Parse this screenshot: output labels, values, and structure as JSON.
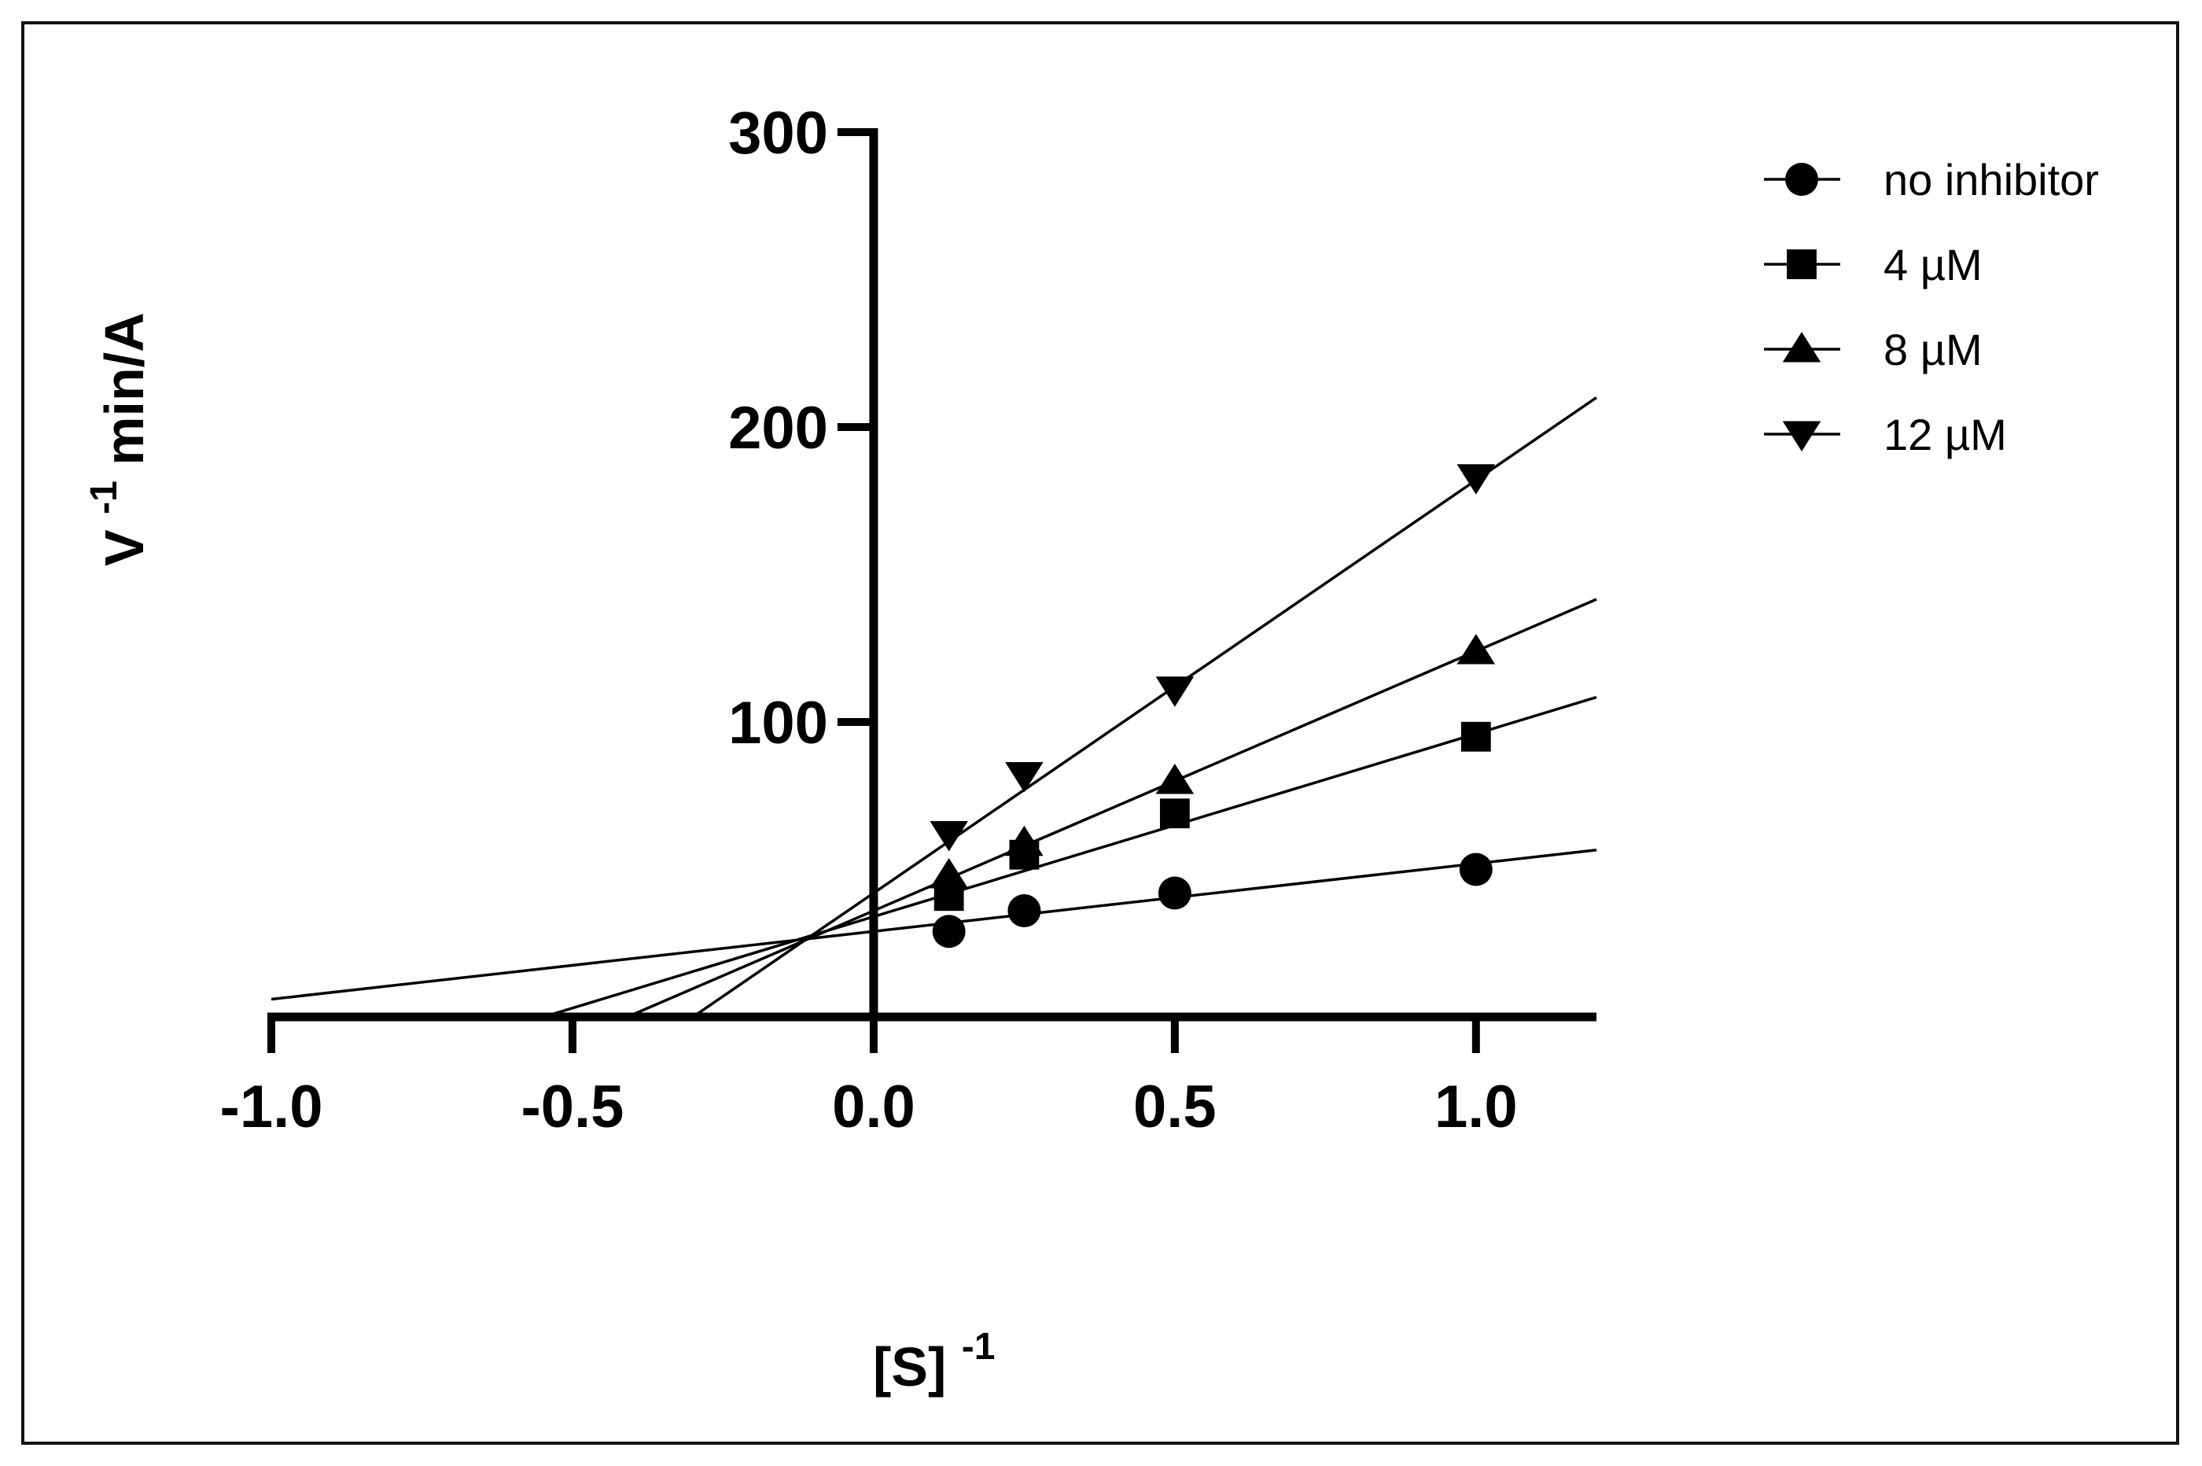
{
  "chart_data": {
    "type": "line",
    "title": "",
    "xlabel": "[S]",
    "xlabel_sup": "-1",
    "ylabel_prefix": "V",
    "ylabel_sup": "-1",
    "ylabel_suffix": " min/A",
    "xlim": [
      -1.0,
      1.2
    ],
    "ylim": [
      0,
      300
    ],
    "x_ticks": [
      -1.0,
      -0.5,
      0.0,
      0.5,
      1.0
    ],
    "x_tick_labels": [
      "-1.0",
      "-0.5",
      "0.0",
      "0.5",
      "1.0"
    ],
    "y_ticks": [
      100,
      200,
      300
    ],
    "y_tick_labels": [
      "100",
      "200",
      "300"
    ],
    "grid": false,
    "legend_position": "top-right",
    "x": [
      0.125,
      0.25,
      0.5,
      1.0
    ],
    "series": [
      {
        "name": "no inhibitor",
        "marker": "circle",
        "values": [
          29,
          36,
          42,
          50
        ],
        "fit": {
          "slope": 23,
          "intercept": 29,
          "x_start": -1.0,
          "x_end": 1.2
        }
      },
      {
        "name": "4 µM",
        "marker": "square",
        "values": [
          41,
          55,
          69,
          95
        ],
        "fit": {
          "slope": 62,
          "intercept": 34,
          "x_start": -0.548,
          "x_end": 1.2
        }
      },
      {
        "name": "8 µM",
        "marker": "triangle-up",
        "values": [
          48,
          59,
          80,
          124
        ],
        "fit": {
          "slope": 88,
          "intercept": 36,
          "x_start": -0.409,
          "x_end": 1.2
        }
      },
      {
        "name": "12 µM",
        "marker": "triangle-down",
        "values": [
          62,
          82,
          111,
          183
        ],
        "fit": {
          "slope": 140,
          "intercept": 42,
          "x_start": -0.3,
          "x_end": 1.2
        }
      }
    ]
  }
}
